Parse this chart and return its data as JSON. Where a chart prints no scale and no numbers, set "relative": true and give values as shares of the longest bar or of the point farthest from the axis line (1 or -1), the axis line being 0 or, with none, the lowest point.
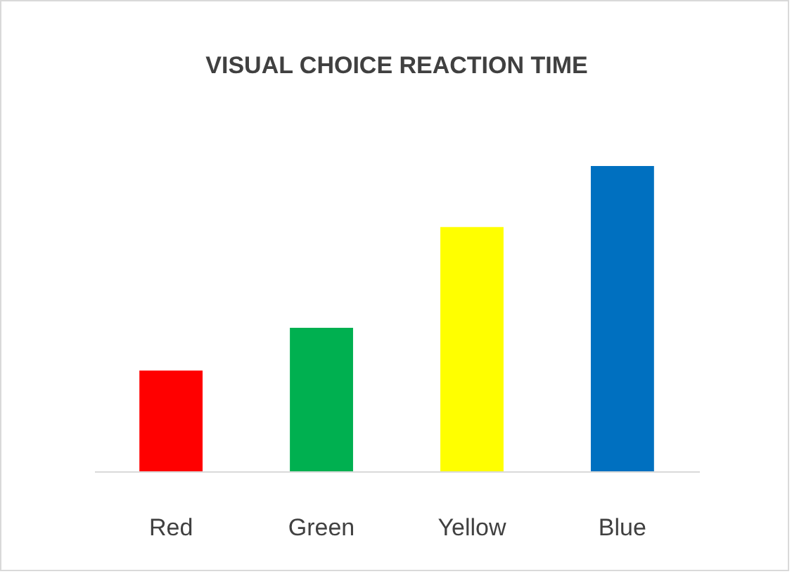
{
  "chart_data": {
    "type": "bar",
    "title": "VISUAL CHOICE REACTION TIME",
    "relative": true,
    "categories": [
      "Red",
      "Green",
      "Yellow",
      "Blue"
    ],
    "values": [
      0.33,
      0.47,
      0.8,
      1
    ],
    "colors": [
      "#ff0000",
      "#00b050",
      "#ffff00",
      "#0070c0"
    ]
  }
}
